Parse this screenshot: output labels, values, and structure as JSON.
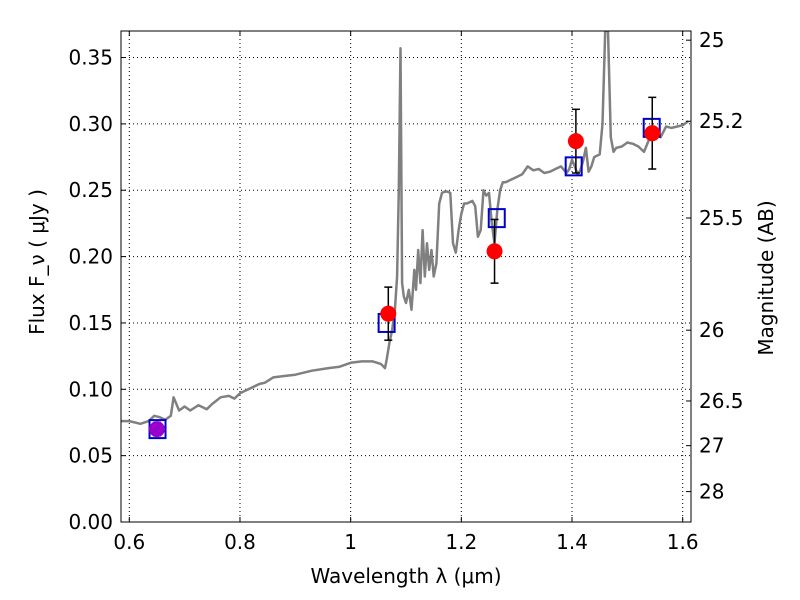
{
  "chart_data": {
    "type": "line",
    "xlabel": "Wavelength  λ (μm)",
    "ylabel": "Flux  F_ν  ( μJy )",
    "ylabel_right": "Magnitude (AB)",
    "xlim": [
      0.585,
      1.615
    ],
    "ylim": [
      0.0,
      0.37
    ],
    "grid": true,
    "x_ticks": [
      0.6,
      0.8,
      1.0,
      1.2,
      1.4,
      1.6
    ],
    "x_tick_labels": [
      "0.6",
      "0.8",
      "1",
      "1.2",
      "1.4",
      "1.6"
    ],
    "y_ticks": [
      0.0,
      0.05,
      0.1,
      0.15,
      0.2,
      0.25,
      0.3,
      0.35
    ],
    "y_tick_labels": [
      "0.00",
      "0.05",
      "0.10",
      "0.15",
      "0.20",
      "0.25",
      "0.30",
      "0.35"
    ],
    "right_ticks": [
      {
        "mag": 25,
        "label": "25"
      },
      {
        "mag": 25.2,
        "label": "25.2"
      },
      {
        "mag": 25.5,
        "label": "25.5"
      },
      {
        "mag": 26,
        "label": "26"
      },
      {
        "mag": 26.5,
        "label": "26.5"
      },
      {
        "mag": 27,
        "label": "27"
      },
      {
        "mag": 28,
        "label": "28"
      }
    ],
    "colors": {
      "spectrum": "#808080",
      "observed": "#ff0000",
      "model": "#0000cc",
      "errorbar": "#000000"
    },
    "series": [
      {
        "kind": "spectrum",
        "x": [
          0.585,
          0.6,
          0.62,
          0.635,
          0.645,
          0.655,
          0.665,
          0.675,
          0.68,
          0.69,
          0.7,
          0.71,
          0.725,
          0.74,
          0.75,
          0.765,
          0.78,
          0.79,
          0.8,
          0.82,
          0.835,
          0.845,
          0.86,
          0.88,
          0.9,
          0.93,
          0.96,
          0.98,
          1.0,
          1.02,
          1.04,
          1.055,
          1.062,
          1.065,
          1.07,
          1.075,
          1.08,
          1.084,
          1.087,
          1.09,
          1.093,
          1.096,
          1.1,
          1.105,
          1.11,
          1.115,
          1.118,
          1.122,
          1.126,
          1.13,
          1.134,
          1.138,
          1.142,
          1.146,
          1.15,
          1.155,
          1.16,
          1.165,
          1.17,
          1.175,
          1.18,
          1.185,
          1.19,
          1.195,
          1.2,
          1.205,
          1.21,
          1.215,
          1.22,
          1.225,
          1.23,
          1.235,
          1.24,
          1.245,
          1.25,
          1.255,
          1.26,
          1.265,
          1.27,
          1.275,
          1.28,
          1.29,
          1.3,
          1.31,
          1.32,
          1.33,
          1.34,
          1.35,
          1.36,
          1.37,
          1.38,
          1.39,
          1.395,
          1.4,
          1.405,
          1.41,
          1.415,
          1.42,
          1.425,
          1.43,
          1.435,
          1.44,
          1.445,
          1.45,
          1.455,
          1.46,
          1.465,
          1.47,
          1.475,
          1.48,
          1.49,
          1.5,
          1.51,
          1.52,
          1.53,
          1.54,
          1.55,
          1.56,
          1.57,
          1.58,
          1.59,
          1.6,
          1.61
        ],
        "y": [
          0.076,
          0.076,
          0.074,
          0.076,
          0.08,
          0.079,
          0.077,
          0.08,
          0.094,
          0.084,
          0.087,
          0.084,
          0.088,
          0.085,
          0.089,
          0.094,
          0.095,
          0.093,
          0.097,
          0.101,
          0.104,
          0.105,
          0.109,
          0.11,
          0.111,
          0.114,
          0.116,
          0.117,
          0.12,
          0.121,
          0.121,
          0.119,
          0.116,
          0.122,
          0.135,
          0.145,
          0.16,
          0.185,
          0.25,
          0.357,
          0.18,
          0.17,
          0.165,
          0.175,
          0.16,
          0.19,
          0.175,
          0.205,
          0.18,
          0.22,
          0.185,
          0.21,
          0.19,
          0.205,
          0.185,
          0.195,
          0.24,
          0.248,
          0.249,
          0.249,
          0.248,
          0.21,
          0.203,
          0.22,
          0.232,
          0.24,
          0.24,
          0.241,
          0.242,
          0.238,
          0.215,
          0.22,
          0.25,
          0.246,
          0.248,
          0.225,
          0.21,
          0.235,
          0.25,
          0.256,
          0.256,
          0.258,
          0.26,
          0.262,
          0.268,
          0.265,
          0.266,
          0.263,
          0.264,
          0.266,
          0.268,
          0.263,
          0.266,
          0.273,
          0.268,
          0.262,
          0.265,
          0.272,
          0.282,
          0.264,
          0.268,
          0.275,
          0.276,
          0.277,
          0.3,
          0.37,
          0.37,
          0.29,
          0.279,
          0.282,
          0.283,
          0.286,
          0.285,
          0.283,
          0.279,
          0.289,
          0.296,
          0.29,
          0.298,
          0.297,
          0.298,
          0.299,
          0.302
        ]
      },
      {
        "kind": "observed",
        "x": [
          0.65,
          1.068,
          1.26,
          1.407,
          1.545
        ],
        "y": [
          0.07,
          0.157,
          0.204,
          0.287,
          0.293
        ],
        "yerr_low": [
          0.005,
          0.02,
          0.024,
          0.024,
          0.027
        ],
        "yerr_high": [
          0.005,
          0.02,
          0.024,
          0.024,
          0.027
        ]
      },
      {
        "kind": "model",
        "x": [
          0.651,
          1.065,
          1.264,
          1.403,
          1.544
        ],
        "y": [
          0.07,
          0.15,
          0.229,
          0.268,
          0.297
        ]
      }
    ]
  }
}
